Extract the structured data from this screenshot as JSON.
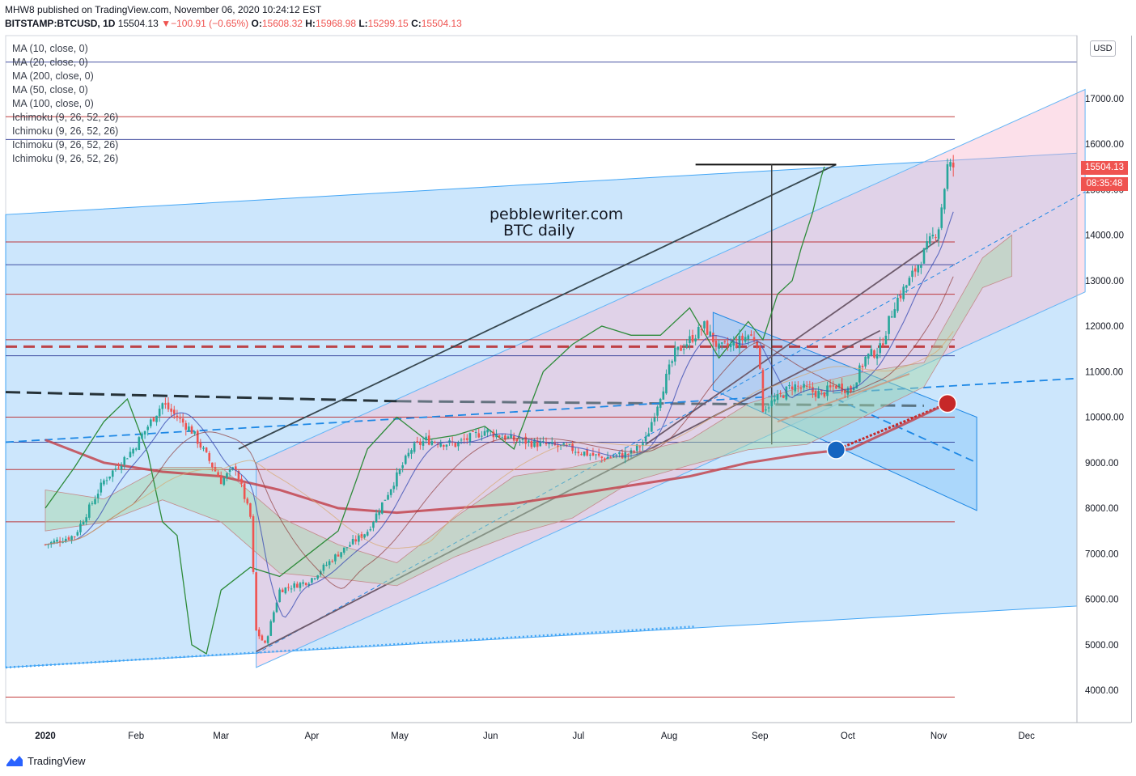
{
  "header": {
    "line1": "MHW8 published on TradingView.com, November 06, 2020 10:24:12 EST",
    "symbol": "BITSTAMP:BTCUSD, 1D",
    "last": "15504.13",
    "arrow": "▼",
    "change": "−100.91 (−0.65%)",
    "o_label": "O:",
    "o_val": "15608.32",
    "h_label": "H:",
    "h_val": "15968.98",
    "l_label": "L:",
    "l_val": "15299.15",
    "c_label": "C:",
    "c_val": "15504.13"
  },
  "legend": [
    "MA (10, close, 0)",
    "MA (20, close, 0)",
    "MA (200, close, 0)",
    "MA (50, close, 0)",
    "MA (100, close, 0)",
    "Ichimoku (9, 26, 52, 26)",
    "Ichimoku (9, 26, 52, 26)",
    "Ichimoku (9, 26, 52, 26)",
    "Ichimoku (9, 26, 52, 26)"
  ],
  "watermark": {
    "line1": "pebblewriter.com",
    "line2": "BTC daily"
  },
  "price_axis": {
    "currency": "USD",
    "last_price": "15504.13",
    "countdown": "08:35:48"
  },
  "footer": {
    "brand": "TradingView"
  },
  "colors": {
    "up": "#26a69a",
    "down": "#ef5350",
    "channel_fill": "#bbdefb",
    "pink_fill": "#fce4ec",
    "ma200": "#c2454f",
    "chikou": "#2e8b3a"
  },
  "chart_data": {
    "type": "candlestick",
    "ylim": [
      3500,
      18500
    ],
    "y_ticks": [
      4000,
      5000,
      6000,
      7000,
      8000,
      9000,
      10000,
      11000,
      12000,
      13000,
      14000,
      15000,
      16000,
      17000
    ],
    "y_tick_labels": [
      "4000.00",
      "5000.00",
      "6000.00",
      "7000.00",
      "8000.00",
      "9000.00",
      "10000.00",
      "11000.00",
      "12000.00",
      "13000.00",
      "14000.00",
      "15000.00",
      "16000.00",
      "17000.00"
    ],
    "x_ticks": [
      "2020",
      "Feb",
      "Mar",
      "Apr",
      "May",
      "Jun",
      "Jul",
      "Aug",
      "Sep",
      "Oct",
      "Nov",
      "Dec"
    ],
    "x_tick_days": [
      0,
      31,
      60,
      91,
      121,
      152,
      182,
      213,
      244,
      274,
      305,
      335
    ],
    "close_path": [
      [
        0,
        7200
      ],
      [
        10,
        7400
      ],
      [
        20,
        8600
      ],
      [
        30,
        9300
      ],
      [
        40,
        10300
      ],
      [
        50,
        9700
      ],
      [
        60,
        8600
      ],
      [
        65,
        8900
      ],
      [
        70,
        7800
      ],
      [
        72,
        5300
      ],
      [
        75,
        5000
      ],
      [
        80,
        6200
      ],
      [
        90,
        6400
      ],
      [
        100,
        7000
      ],
      [
        110,
        7500
      ],
      [
        120,
        8700
      ],
      [
        125,
        9300
      ],
      [
        130,
        9500
      ],
      [
        140,
        9400
      ],
      [
        150,
        9700
      ],
      [
        160,
        9500
      ],
      [
        170,
        9400
      ],
      [
        180,
        9300
      ],
      [
        190,
        9100
      ],
      [
        200,
        9200
      ],
      [
        205,
        9500
      ],
      [
        210,
        10500
      ],
      [
        215,
        11400
      ],
      [
        220,
        11700
      ],
      [
        225,
        12000
      ],
      [
        230,
        11500
      ],
      [
        235,
        11600
      ],
      [
        240,
        11800
      ],
      [
        243,
        11700
      ],
      [
        245,
        10200
      ],
      [
        250,
        10400
      ],
      [
        255,
        10700
      ],
      [
        260,
        10600
      ],
      [
        265,
        10500
      ],
      [
        270,
        10700
      ],
      [
        275,
        10600
      ],
      [
        280,
        11300
      ],
      [
        285,
        11500
      ],
      [
        290,
        12500
      ],
      [
        295,
        13000
      ],
      [
        300,
        13600
      ],
      [
        305,
        14200
      ],
      [
        308,
        15500
      ],
      [
        310,
        15504
      ]
    ],
    "ma200_path": [
      [
        0,
        9500
      ],
      [
        20,
        9000
      ],
      [
        40,
        8800
      ],
      [
        60,
        8700
      ],
      [
        80,
        8400
      ],
      [
        100,
        8000
      ],
      [
        120,
        7900
      ],
      [
        140,
        8000
      ],
      [
        160,
        8100
      ],
      [
        180,
        8300
      ],
      [
        200,
        8500
      ],
      [
        220,
        8700
      ],
      [
        240,
        9000
      ],
      [
        260,
        9200
      ],
      [
        275,
        9300
      ],
      [
        295,
        9900
      ],
      [
        308,
        10300
      ]
    ],
    "chikou_path": [
      [
        0,
        8000
      ],
      [
        10,
        8900
      ],
      [
        20,
        9900
      ],
      [
        28,
        10400
      ],
      [
        35,
        9200
      ],
      [
        40,
        7700
      ],
      [
        45,
        7400
      ],
      [
        50,
        5000
      ],
      [
        55,
        4800
      ],
      [
        60,
        6200
      ],
      [
        70,
        6700
      ],
      [
        80,
        6500
      ],
      [
        90,
        7000
      ],
      [
        100,
        7500
      ],
      [
        110,
        9300
      ],
      [
        120,
        10000
      ],
      [
        130,
        9500
      ],
      [
        140,
        9600
      ],
      [
        150,
        9800
      ],
      [
        160,
        9300
      ],
      [
        170,
        11000
      ],
      [
        180,
        11600
      ],
      [
        190,
        12000
      ],
      [
        200,
        11800
      ],
      [
        210,
        11800
      ],
      [
        220,
        12400
      ],
      [
        230,
        11300
      ],
      [
        240,
        12100
      ],
      [
        245,
        11700
      ],
      [
        250,
        12700
      ],
      [
        255,
        13000
      ],
      [
        258,
        13700
      ],
      [
        262,
        14500
      ],
      [
        265,
        15300
      ],
      [
        266,
        15500
      ]
    ],
    "horizontal_levels": [
      {
        "value": 17800,
        "color": "#283593"
      },
      {
        "value": 16600,
        "color": "#b71c1c"
      },
      {
        "value": 16100,
        "color": "#283593"
      },
      {
        "value": 13850,
        "color": "#b71c1c"
      },
      {
        "value": 13350,
        "color": "#283593"
      },
      {
        "value": 12700,
        "color": "#b71c1c"
      },
      {
        "value": 11700,
        "color": "#b71c1c"
      },
      {
        "value": 11550,
        "color": "#b71c1c",
        "dashed": true
      },
      {
        "value": 11350,
        "color": "#283593"
      },
      {
        "value": 10000,
        "color": "#b71c1c"
      },
      {
        "value": 9450,
        "color": "#283593"
      },
      {
        "value": 8850,
        "color": "#b71c1c"
      },
      {
        "value": 7700,
        "color": "#b71c1c"
      },
      {
        "value": 3850,
        "color": "#b71c1c"
      }
    ],
    "markers": [
      {
        "day": 270,
        "value": 9280,
        "color": "#1565c0"
      },
      {
        "day": 308,
        "value": 10300,
        "color": "#c62828"
      }
    ],
    "grid": false,
    "legend": "top-left"
  }
}
